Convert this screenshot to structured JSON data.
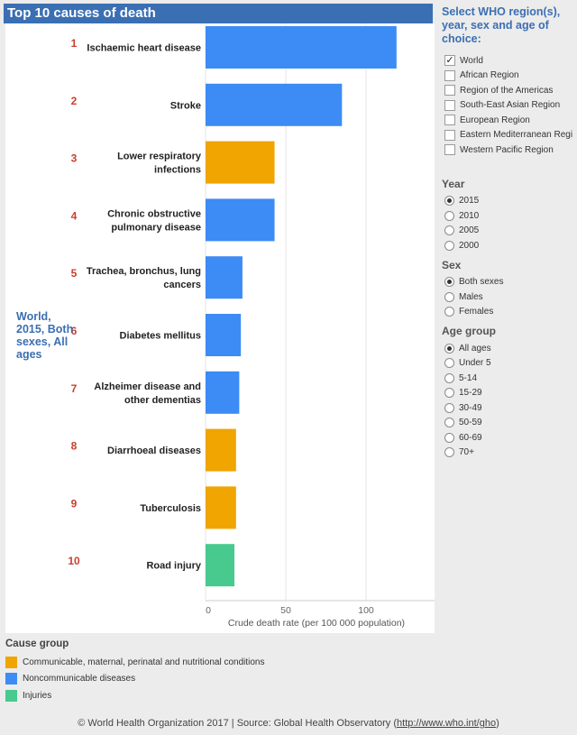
{
  "header": {
    "title": "Top 10 causes of death"
  },
  "region_label": [
    "World,",
    "2015, Both",
    "sexes, All",
    "ages"
  ],
  "chart_data": {
    "type": "bar",
    "orientation": "horizontal",
    "title": "Top 10 causes of death",
    "xlabel": "Crude death rate (per 100 000 population)",
    "xlim": [
      0,
      145
    ],
    "xticks": [
      0,
      50,
      100
    ],
    "grid": true,
    "categories": [
      {
        "rank": "1",
        "lines": [
          "Ischaemic heart disease"
        ],
        "value": 119,
        "group": "noncommunicable"
      },
      {
        "rank": "2",
        "lines": [
          "Stroke"
        ],
        "value": 85,
        "group": "noncommunicable"
      },
      {
        "rank": "3",
        "lines": [
          "Lower respiratory",
          "infections"
        ],
        "value": 43,
        "group": "communicable"
      },
      {
        "rank": "4",
        "lines": [
          "Chronic obstructive",
          "pulmonary disease"
        ],
        "value": 43,
        "group": "noncommunicable"
      },
      {
        "rank": "5",
        "lines": [
          "Trachea, bronchus, lung",
          "cancers"
        ],
        "value": 23,
        "group": "noncommunicable"
      },
      {
        "rank": "6",
        "lines": [
          "Diabetes mellitus"
        ],
        "value": 22,
        "group": "noncommunicable"
      },
      {
        "rank": "7",
        "lines": [
          "Alzheimer disease and",
          "other dementias"
        ],
        "value": 21,
        "group": "noncommunicable"
      },
      {
        "rank": "8",
        "lines": [
          "Diarrhoeal diseases"
        ],
        "value": 19,
        "group": "communicable"
      },
      {
        "rank": "9",
        "lines": [
          "Tuberculosis"
        ],
        "value": 19,
        "group": "communicable"
      },
      {
        "rank": "10",
        "lines": [
          "Road injury"
        ],
        "value": 18,
        "group": "injuries"
      }
    ],
    "group_colors": {
      "communicable": "#f0a500",
      "noncommunicable": "#3d8bf5",
      "injuries": "#48c98e"
    }
  },
  "filters": {
    "title": "Select WHO region(s), year, sex and age of choice:",
    "regions": [
      {
        "label": "World",
        "checked": true
      },
      {
        "label": "African Region",
        "checked": false
      },
      {
        "label": "Region of the Americas",
        "checked": false
      },
      {
        "label": "South-East Asian Region",
        "checked": false
      },
      {
        "label": "European Region",
        "checked": false
      },
      {
        "label": "Eastern Mediterranean Regi",
        "checked": false
      },
      {
        "label": "Western Pacific Region",
        "checked": false
      }
    ],
    "year": {
      "title": "Year",
      "options": [
        "2015",
        "2010",
        "2005",
        "2000"
      ],
      "selected": "2015"
    },
    "sex": {
      "title": "Sex",
      "options": [
        "Both sexes",
        "Males",
        "Females"
      ],
      "selected": "Both sexes"
    },
    "age": {
      "title": "Age group",
      "options": [
        "All ages",
        "Under 5",
        "5-14",
        "15-29",
        "30-49",
        "50-59",
        "60-69",
        "70+"
      ],
      "selected": "All ages"
    }
  },
  "legend": {
    "title": "Cause group",
    "items": [
      {
        "label": "Communicable, maternal, perinatal and nutritional conditions",
        "color": "#f0a500"
      },
      {
        "label": "Noncommunicable diseases",
        "color": "#3d8bf5"
      },
      {
        "label": "Injuries",
        "color": "#48c98e"
      }
    ]
  },
  "footer": {
    "text": "© World Health Organization 2017 | Source: Global Health Observatory (",
    "link": "http://www.who.int/gho",
    "close": ")"
  }
}
